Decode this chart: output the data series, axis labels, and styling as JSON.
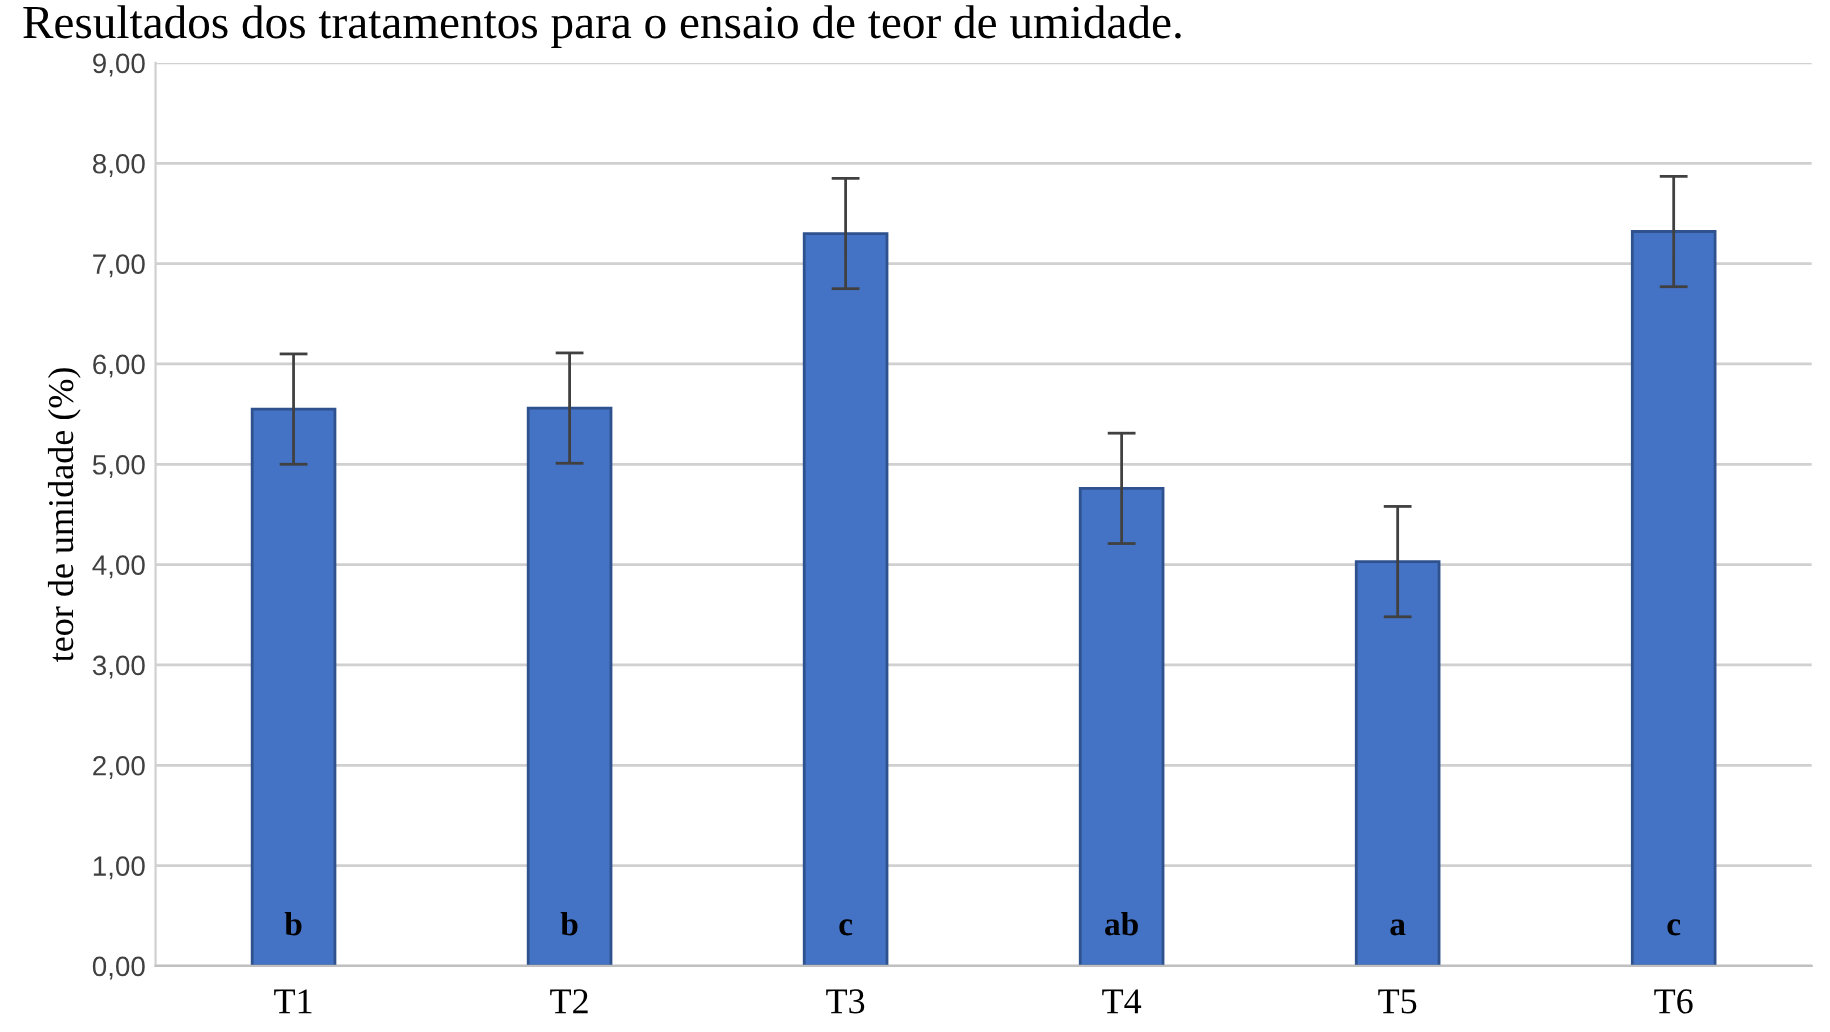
{
  "chart_data": {
    "type": "bar",
    "title": "Resultados dos tratamentos para o ensaio de teor de umidade.",
    "ylabel": "teor de umidade (%)",
    "categories": [
      "T1",
      "T2",
      "T3",
      "T4",
      "T5",
      "T6"
    ],
    "values": [
      5.55,
      5.56,
      7.3,
      4.76,
      4.03,
      7.32
    ],
    "errors": [
      0.55,
      0.55,
      0.55,
      0.55,
      0.55,
      0.55
    ],
    "color": "#4472c4",
    "ylim": [
      0,
      9
    ],
    "yticks": [
      {
        "value": 0,
        "label": "0,00"
      },
      {
        "value": 1,
        "label": "1,00"
      },
      {
        "value": 2,
        "label": "2,00"
      },
      {
        "value": 3,
        "label": "3,00"
      },
      {
        "value": 4,
        "label": "4,00"
      },
      {
        "value": 5,
        "label": "5,00"
      },
      {
        "value": 6,
        "label": "6,00"
      },
      {
        "value": 7,
        "label": "7,00"
      },
      {
        "value": 8,
        "label": "8,00"
      },
      {
        "value": 9,
        "label": "9,00"
      }
    ],
    "grid": "y",
    "annotations": [
      "b",
      "b",
      "c",
      "ab",
      "a",
      "c"
    ]
  }
}
